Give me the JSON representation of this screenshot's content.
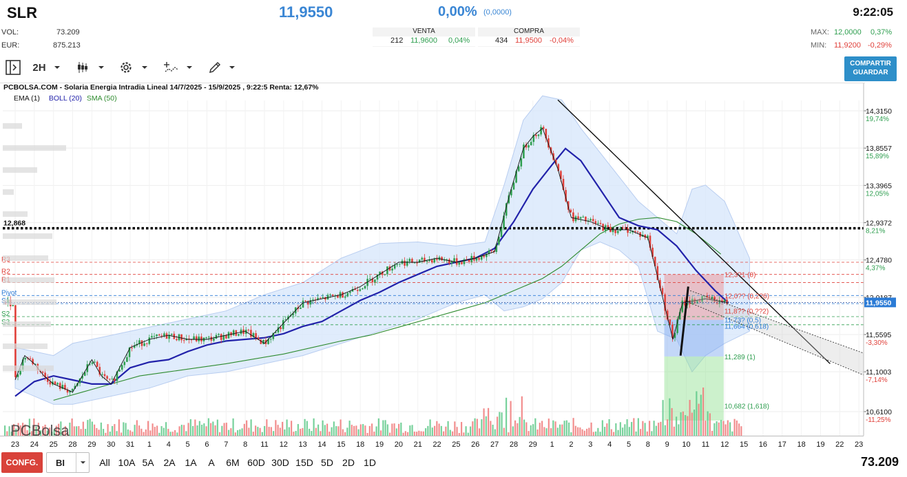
{
  "header": {
    "ticker": "SLR",
    "price": "11,9550",
    "change_pct": "0,00%",
    "change_abs": "(0,0000)",
    "time": "9:22:05",
    "vol_label": "VOL:",
    "vol_value": "73.209",
    "eur_label": "EUR:",
    "eur_value": "875.213",
    "max_label": "MAX:",
    "max_value": "12,0000",
    "max_pct": "0,37%",
    "min_label": "MIN:",
    "min_value": "11,9200",
    "min_pct": "-0,29%"
  },
  "book": {
    "sell": {
      "label": "VENTA",
      "qty": "212",
      "price": "11,9600",
      "pct": "0,04%"
    },
    "buy": {
      "label": "COMPRA",
      "qty": "434",
      "price": "11,9500",
      "pct": "-0,04%"
    }
  },
  "toolbar": {
    "timeframe": "2H",
    "share_line1": "COMPARTIR",
    "share_line2": "GUARDAR",
    "icons": [
      "panel-toggle-icon",
      "chevron-down-icon",
      "candlestick-icon",
      "gear-icon",
      "drawing-tools-icon",
      "pencil-icon"
    ]
  },
  "legend": {
    "title": "PCBOLSA.COM - Solaria Energia Intradia Lineal 14/7/2025 - 15/9/2025 , 9:22:5 Renta: 12,67%",
    "indicators": [
      {
        "label": "EMA (1)",
        "color": "#111111"
      },
      {
        "label": "BOLL (20)",
        "color": "#2222aa"
      },
      {
        "label": "SMA (50)",
        "color": "#2e8b2e"
      }
    ]
  },
  "watermark": "PCBolsa",
  "footer": {
    "config_label": "CONFG.",
    "select_value": "BI",
    "periods": [
      "All",
      "10A",
      "5A",
      "2A",
      "1A",
      "A",
      "6M",
      "60D",
      "30D",
      "15D",
      "5D",
      "2D",
      "1D"
    ],
    "total_volume": "73.209"
  },
  "chart_data": {
    "type": "candlestick",
    "title": "PCBOLSA.COM - Solaria Energia Intradia Lineal 14/7/2025 - 15/9/2025 , 9:22:5 Renta: 12,67%",
    "ylim": [
      10.45,
      14.55
    ],
    "price_ticks": [
      {
        "value": 14.315,
        "label": "14,3150",
        "pct": "19,74%",
        "pct_color": "#2e9e4f"
      },
      {
        "value": 13.8557,
        "label": "13,8557",
        "pct": "15,89%",
        "pct_color": "#2e9e4f"
      },
      {
        "value": 13.3965,
        "label": "13,3965",
        "pct": "12,05%",
        "pct_color": "#2e9e4f"
      },
      {
        "value": 12.9372,
        "label": "12,9372",
        "pct": "8,21%",
        "pct_color": "#2e9e4f"
      },
      {
        "value": 12.478,
        "label": "12,4780",
        "pct": "4,37%",
        "pct_color": "#2e9e4f"
      },
      {
        "value": 12.0187,
        "label": "12,0187",
        "pct": "",
        "pct_color": "#2e9e4f"
      },
      {
        "value": 11.5595,
        "label": "11,5595",
        "pct": "-3,30%",
        "pct_color": "#e0403a"
      },
      {
        "value": 11.1003,
        "label": "11,1003",
        "pct": "-7,14%",
        "pct_color": "#e0403a"
      },
      {
        "value": 10.61,
        "label": "10,6100",
        "pct": "-11,25%",
        "pct_color": "#e0403a"
      }
    ],
    "current_price": {
      "value": 11.955,
      "label": "11,9550"
    },
    "x_labels": [
      "23",
      "24",
      "25",
      "28",
      "29",
      "30",
      "31",
      "1",
      "4",
      "5",
      "6",
      "7",
      "8",
      "11",
      "12",
      "13",
      "14",
      "15",
      "18",
      "19",
      "20",
      "21",
      "22",
      "25",
      "26",
      "27",
      "28",
      "29",
      "1",
      "2",
      "3",
      "4",
      "5",
      "8",
      "9",
      "10",
      "11",
      "12",
      "15",
      "16",
      "17",
      "18",
      "19",
      "22",
      "23"
    ],
    "n_last_data": 38,
    "closes": [
      11.0,
      11.3,
      11.2,
      11.05,
      10.95,
      10.85,
      11.25,
      11.05,
      10.95,
      11.4,
      11.5,
      11.55,
      11.5,
      11.5,
      11.55,
      11.6,
      11.45,
      11.7,
      11.95,
      12.0,
      12.05,
      12.15,
      12.3,
      12.45,
      12.45,
      12.5,
      12.45,
      12.5,
      12.58,
      13.3,
      13.85,
      14.0,
      14.1,
      13.6,
      13.0,
      12.95,
      12.85,
      12.85,
      12.75,
      11.5,
      11.95,
      12.0,
      11.95
    ],
    "close_x": [
      0,
      0.5,
      1,
      1.5,
      2,
      3,
      4,
      4.5,
      5,
      6,
      7,
      8,
      9,
      10,
      11,
      12,
      13,
      14,
      15,
      16,
      17,
      18,
      19,
      20,
      21,
      22,
      23,
      24,
      25,
      25.8,
      26.5,
      27,
      27.5,
      28.3,
      29,
      30,
      31,
      32,
      33,
      34.3,
      34.8,
      36,
      37.2
    ],
    "ema": [
      10.8,
      10.98,
      11.05,
      11.0,
      10.95,
      10.95,
      11.15,
      11.22,
      11.25,
      11.35,
      11.43,
      11.48,
      11.5,
      11.52,
      11.57,
      11.66,
      11.72,
      11.85,
      11.98,
      12.08,
      12.2,
      12.3,
      12.4,
      12.45,
      12.5,
      12.62,
      12.95,
      13.35,
      13.65,
      13.85,
      13.7,
      13.35,
      13.0,
      12.9,
      12.85,
      12.65,
      12.35,
      12.1,
      11.95
    ],
    "ema_x": [
      0,
      1,
      2,
      3,
      4,
      5,
      6,
      7,
      8,
      9,
      10,
      11,
      12,
      13,
      14,
      15,
      16,
      17,
      18,
      19,
      20,
      21,
      22,
      23,
      24,
      25,
      26,
      27,
      28,
      28.7,
      29.5,
      30.5,
      31.5,
      32.5,
      33.5,
      34.5,
      35.5,
      36.5,
      37.2
    ],
    "sma": [
      10.75,
      10.85,
      10.95,
      11.05,
      11.1,
      11.15,
      11.2,
      11.26,
      11.32,
      11.4,
      11.48,
      11.55,
      11.65,
      11.75,
      11.85,
      11.95,
      12.05,
      12.15,
      12.25,
      12.4,
      12.6,
      12.8,
      12.92,
      12.98,
      13.0,
      12.95,
      12.8,
      12.55
    ],
    "sma_x": [
      2,
      3.5,
      5,
      6.5,
      8,
      9.5,
      11,
      12.5,
      14,
      15.5,
      17,
      18.5,
      20,
      21.5,
      23,
      24.5,
      25.5,
      26.5,
      27.5,
      28.5,
      29.5,
      30.5,
      31.5,
      32.5,
      33.5,
      34.5,
      35.5,
      36.8
    ],
    "boll_upper": [
      11.4,
      11.3,
      11.45,
      11.55,
      11.65,
      11.75,
      11.85,
      12.05,
      12.2,
      12.5,
      12.68,
      12.7,
      12.65,
      12.7,
      13.4,
      14.2,
      14.5,
      14.45,
      14.1,
      13.8,
      13.5,
      13.2,
      13.0,
      12.8,
      13.35,
      13.4,
      13.2,
      12.5
    ],
    "boll_lower": [
      10.9,
      10.7,
      10.7,
      10.8,
      10.9,
      11.05,
      11.1,
      11.2,
      11.3,
      11.45,
      11.6,
      11.75,
      11.95,
      12.05,
      11.85,
      11.9,
      12.0,
      12.2,
      12.6,
      12.7,
      12.6,
      12.4,
      11.6,
      11.5,
      11.1,
      11.3,
      11.45,
      11.6
    ],
    "boll_x": [
      0,
      2,
      3,
      5,
      7,
      9,
      11,
      13,
      15,
      17,
      19,
      21,
      23,
      24.5,
      25.5,
      26.5,
      27.5,
      28.5,
      29.5,
      30.5,
      31.5,
      32.5,
      33.5,
      34.5,
      35.3,
      36,
      37,
      38.3
    ],
    "levels": [
      {
        "name": "R3",
        "value": 12.45,
        "color": "#e0403a"
      },
      {
        "name": "R2",
        "value": 12.3,
        "color": "#e0403a"
      },
      {
        "name": "R1",
        "value": 12.2,
        "color": "#e0403a"
      },
      {
        "name": "Pivot",
        "value": 12.04,
        "color": "#2b7bd6"
      },
      {
        "name": "S1",
        "value": 11.94,
        "color": "#2b7bd6"
      },
      {
        "name": "S2",
        "value": 11.78,
        "color": "#2e9e4f"
      },
      {
        "name": "S3",
        "value": 11.68,
        "color": "#2e9e4f"
      }
    ],
    "key_level": {
      "value": 12.868,
      "label": "12,868"
    },
    "fib_labels": [
      {
        "value": 12.3,
        "text": "12,3?1 (0)",
        "color": "#e0403a"
      },
      {
        "value": 12.04,
        "text": "12,0?? (0,2?6)",
        "color": "#e0403a"
      },
      {
        "value": 11.85,
        "text": "11,8?? (0,??2)",
        "color": "#e0403a"
      },
      {
        "value": 11.74,
        "text": "11,73? (0,5)",
        "color": "#2b7bd6"
      },
      {
        "value": 11.664,
        "text": "11,664 (0,618)",
        "color": "#2b7bd6"
      },
      {
        "value": 11.289,
        "text": "11,289 (1)",
        "color": "#2e9e4f"
      },
      {
        "value": 10.682,
        "text": "10,682 (1,618)",
        "color": "#2e9e4f"
      }
    ],
    "fib_zones": [
      {
        "from": 12.3,
        "to": 11.74,
        "color": "#f08a8a"
      },
      {
        "from": 11.74,
        "to": 11.289,
        "color": "#7aa7f0"
      },
      {
        "from": 11.289,
        "to": 10.5,
        "color": "#8fe08f"
      }
    ],
    "trendlines": [
      {
        "x1": 28.3,
        "y1": 14.45,
        "x2": 42.5,
        "y2": 11.2
      },
      {
        "x1": 34.7,
        "y1": 11.3,
        "x2": 35.1,
        "y2": 12.15
      }
    ],
    "channel": {
      "upper": [
        [
          35.2,
          12.1
        ],
        [
          45,
          11.3
        ]
      ],
      "lower": [
        [
          35.2,
          11.95
        ],
        [
          45,
          11.0
        ]
      ]
    }
  }
}
